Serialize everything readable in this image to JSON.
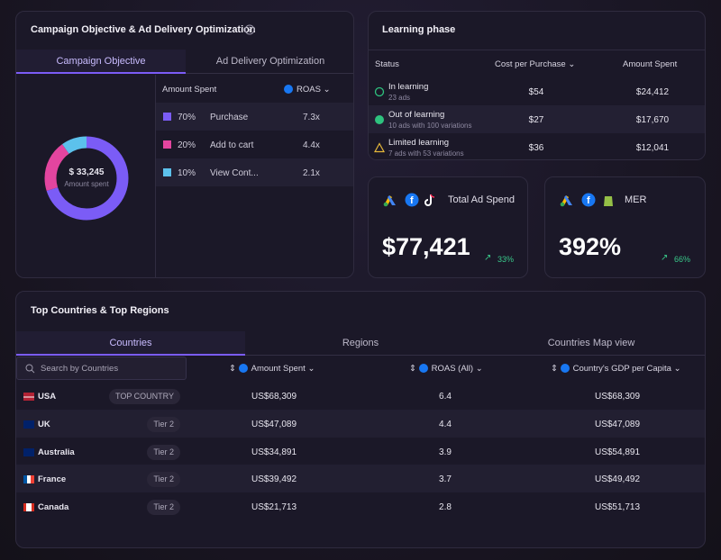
{
  "campaign": {
    "title": "Campaign Objective & Ad Delivery Optimization",
    "tabs": [
      "Campaign Objective",
      "Ad Delivery Optimization"
    ],
    "donut": {
      "total": "$ 33,245",
      "caption": "Amount spent"
    },
    "columns": [
      "Amount Spent",
      "ROAS"
    ],
    "rows": [
      {
        "value": 70,
        "value_label": "70%",
        "name": "Purchase",
        "roas": "7.3x",
        "color": "#7b5cf6"
      },
      {
        "value": 20,
        "value_label": "20%",
        "name": "Add to cart",
        "roas": "4.4x",
        "color": "#e3459f"
      },
      {
        "value": 10,
        "value_label": "10%",
        "name": "View Cont...",
        "roas": "2.1x",
        "color": "#5cc1ec"
      }
    ]
  },
  "learning": {
    "title": "Learning phase",
    "columns": [
      "Status",
      "Cost per Purchase",
      "Amount Spent"
    ],
    "rows": [
      {
        "status": "In learning",
        "detail": "23 ads",
        "cost": "$54",
        "spent": "$24,412"
      },
      {
        "status": "Out of learning",
        "detail": "10 ads with 100 variations",
        "cost": "$27",
        "spent": "$17,670"
      },
      {
        "status": "Limited learning",
        "detail": "7 ads with 53 variations",
        "cost": "$36",
        "spent": "$12,041"
      }
    ]
  },
  "kpis": [
    {
      "title": "Total Ad Spend",
      "value": "$77,421",
      "change": "33%"
    },
    {
      "title": "MER",
      "value": "392%",
      "change": "66%"
    }
  ],
  "countries": {
    "title": "Top Countries & Top Regions",
    "tabs": [
      "Countries",
      "Regions",
      "Countries Map view"
    ],
    "search": "Search by Countries",
    "columns": [
      "Amount Spent",
      "ROAS (All)",
      "Country's GDP per Capita"
    ],
    "rows": [
      {
        "country": "USA",
        "tag": "TOP COUNTRY",
        "spent": "US$68,309",
        "roas": "6.4",
        "gdp": "US$68,309"
      },
      {
        "country": "UK",
        "tag": "Tier 2",
        "spent": "US$47,089",
        "roas": "4.4",
        "gdp": "US$47,089"
      },
      {
        "country": "Australia",
        "tag": "Tier 2",
        "spent": "US$34,891",
        "roas": "3.9",
        "gdp": "US$54,891"
      },
      {
        "country": "France",
        "tag": "Tier 2",
        "spent": "US$39,492",
        "roas": "3.7",
        "gdp": "US$49,492"
      },
      {
        "country": "Canada",
        "tag": "Tier 2",
        "spent": "US$21,713",
        "roas": "2.8",
        "gdp": "US$51,713"
      }
    ]
  }
}
